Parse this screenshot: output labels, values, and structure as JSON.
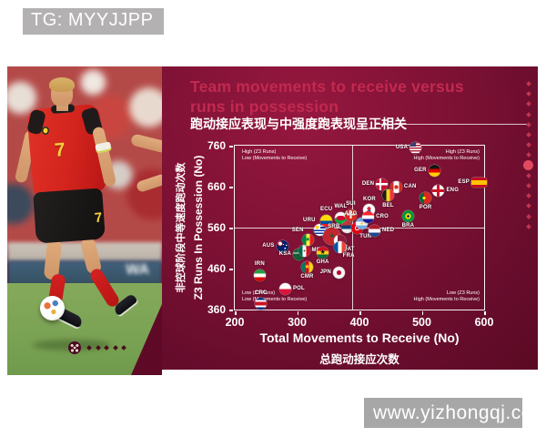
{
  "meta": {
    "tg_label": "TG: MYYJJPP",
    "watermark": "www.yizhongqj.com"
  },
  "title": {
    "line1": "Team movements to receive versus",
    "line2": "runs in possession",
    "subtitle_zh": "跑动接应表现与中强度跑表现呈正相关"
  },
  "photo": {
    "jersey_number": "7",
    "shorts_number": "7",
    "board_text": "WA"
  },
  "colors": {
    "panel": "#7d1134",
    "panel_dark": "#55091f",
    "title_accent": "#c22950",
    "chart_frame": "#ffffff",
    "watermark_bg": "#a7a7a7",
    "tg_bg": "#b3b1b1",
    "decor_dot": "#cf3b57"
  },
  "chart_data": {
    "type": "scatter",
    "title": "Team movements to receive versus runs in possession",
    "xlabel": "Total Movements to Receive (No)",
    "xlabel_zh": "总跑动接应次数",
    "ylabel": "Z3 Runs In Possession (No)",
    "ylabel_zh": "非控球阶段中等速度跑动次数",
    "xlim": [
      200,
      600
    ],
    "ylim": [
      360,
      760
    ],
    "xticks": [
      200,
      300,
      400,
      500,
      600
    ],
    "yticks": [
      360,
      460,
      560,
      660,
      760
    ],
    "quadrant_divider_x": 388,
    "quadrant_divider_y": 560,
    "grid": false,
    "quadrants": {
      "top_left": [
        "High (Z3 Runs)",
        "Low (Movements to Receive)"
      ],
      "top_right": [
        "High (Z3 Runs)",
        "High (Movements to Receive)"
      ],
      "bottom_left": [
        "Low (Z3 Runs)",
        "Low (Movements to Receive)"
      ],
      "bottom_right": [
        "Low (Z3 Runs)",
        "High (Movements to Receive)"
      ]
    },
    "points": [
      {
        "team": "CRC",
        "x": 242,
        "y": 374,
        "lp": "t"
      },
      {
        "team": "IRN",
        "x": 240,
        "y": 444,
        "lp": "t"
      },
      {
        "team": "POL",
        "x": 281,
        "y": 410,
        "lp": "r"
      },
      {
        "team": "AUS",
        "x": 276,
        "y": 514,
        "lp": "l"
      },
      {
        "team": "KSA",
        "x": 303,
        "y": 494,
        "lp": "l"
      },
      {
        "team": "MEX",
        "x": 311,
        "y": 504,
        "lp": "r"
      },
      {
        "team": "SEN",
        "x": 317,
        "y": 530,
        "lp": "tl"
      },
      {
        "team": "CMR",
        "x": 316,
        "y": 464,
        "lp": "b"
      },
      {
        "team": "GHA",
        "x": 341,
        "y": 499,
        "lp": "b"
      },
      {
        "team": "JPN",
        "x": 367,
        "y": 449,
        "lp": "l"
      },
      {
        "team": "URU",
        "x": 336,
        "y": 554,
        "lp": "tl"
      },
      {
        "team": "ECU",
        "x": 347,
        "y": 577,
        "lp": "t"
      },
      {
        "team": "WAL",
        "x": 370,
        "y": 584,
        "lp": "t"
      },
      {
        "team": "MAR",
        "x": 356,
        "y": 540,
        "lp": "br"
      },
      {
        "team": "QAT",
        "x": 369,
        "y": 527,
        "lp": "br"
      },
      {
        "team": "FRA",
        "x": 369,
        "y": 513,
        "lp": "br"
      },
      {
        "team": "SRB",
        "x": 381,
        "y": 561,
        "lp": "l"
      },
      {
        "team": "TUN",
        "x": 396,
        "y": 559,
        "lp": "br"
      },
      {
        "team": "SUI",
        "x": 386,
        "y": 591,
        "lp": "t"
      },
      {
        "team": "ARG",
        "x": 403,
        "y": 570,
        "lp": "tl"
      },
      {
        "team": "NED",
        "x": 424,
        "y": 552,
        "lp": "r"
      },
      {
        "team": "KOR",
        "x": 416,
        "y": 603,
        "lp": "t"
      },
      {
        "team": "CRO",
        "x": 414,
        "y": 586,
        "lp": "r"
      },
      {
        "team": "BRA",
        "x": 478,
        "y": 588,
        "lp": "b"
      },
      {
        "team": "DEN",
        "x": 436,
        "y": 666,
        "lp": "l"
      },
      {
        "team": "CAN",
        "x": 459,
        "y": 659,
        "lp": "r"
      },
      {
        "team": "BEL",
        "x": 446,
        "y": 638,
        "lp": "b"
      },
      {
        "team": "POR",
        "x": 506,
        "y": 633,
        "lp": "b"
      },
      {
        "team": "ENG",
        "x": 527,
        "y": 649,
        "lp": "r"
      },
      {
        "team": "GER",
        "x": 520,
        "y": 700,
        "lp": "l"
      },
      {
        "team": "ESP",
        "x": 592,
        "y": 670,
        "lp": "l"
      },
      {
        "team": "USA",
        "x": 490,
        "y": 755,
        "lp": "l"
      }
    ]
  }
}
